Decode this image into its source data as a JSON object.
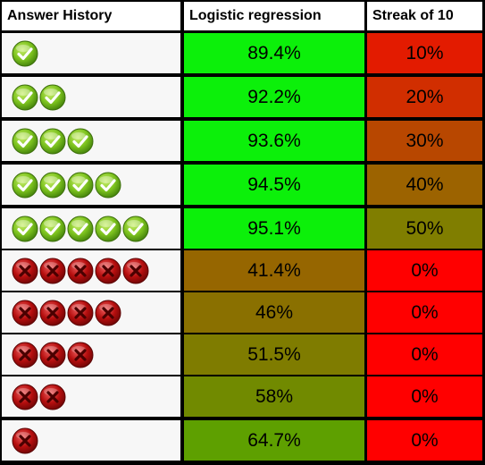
{
  "headers": {
    "history": "Answer History",
    "logistic": "Logistic regression",
    "streak": "Streak of 10"
  },
  "rows": [
    {
      "icons": [
        "check-icon"
      ],
      "logistic": "89.4%",
      "streak": "10%",
      "logistic_color": "#0cf00a",
      "streak_color": "#e31b00"
    },
    {
      "icons": [
        "check-icon",
        "check-icon"
      ],
      "logistic": "92.2%",
      "streak": "20%",
      "logistic_color": "#0cf00a",
      "streak_color": "#d12e00"
    },
    {
      "icons": [
        "check-icon",
        "check-icon",
        "check-icon"
      ],
      "logistic": "93.6%",
      "streak": "30%",
      "logistic_color": "#0cf00a",
      "streak_color": "#b84700"
    },
    {
      "icons": [
        "check-icon",
        "check-icon",
        "check-icon",
        "check-icon"
      ],
      "logistic": "94.5%",
      "streak": "40%",
      "logistic_color": "#0cf00a",
      "streak_color": "#9c6300"
    },
    {
      "icons": [
        "check-icon",
        "check-icon",
        "check-icon",
        "check-icon",
        "check-icon"
      ],
      "logistic": "95.1%",
      "streak": "50%",
      "logistic_color": "#0cf00a",
      "streak_color": "#807e00"
    },
    {
      "icons": [
        "cross-icon",
        "cross-icon",
        "cross-icon",
        "cross-icon",
        "cross-icon"
      ],
      "logistic": "41.4%",
      "streak": "0%",
      "logistic_color": "#966600",
      "streak_color": "#ff0000"
    },
    {
      "icons": [
        "cross-icon",
        "cross-icon",
        "cross-icon",
        "cross-icon"
      ],
      "logistic": "46%",
      "streak": "0%",
      "logistic_color": "#8a7000",
      "streak_color": "#ff0000"
    },
    {
      "icons": [
        "cross-icon",
        "cross-icon",
        "cross-icon"
      ],
      "logistic": "51.5%",
      "streak": "0%",
      "logistic_color": "#7f7c00",
      "streak_color": "#ff0000"
    },
    {
      "icons": [
        "cross-icon",
        "cross-icon"
      ],
      "logistic": "58%",
      "streak": "0%",
      "logistic_color": "#718a00",
      "streak_color": "#ff0000"
    },
    {
      "icons": [
        "cross-icon"
      ],
      "logistic": "64.7%",
      "streak": "0%",
      "logistic_color": "#5ea000",
      "streak_color": "#ff0000"
    }
  ]
}
